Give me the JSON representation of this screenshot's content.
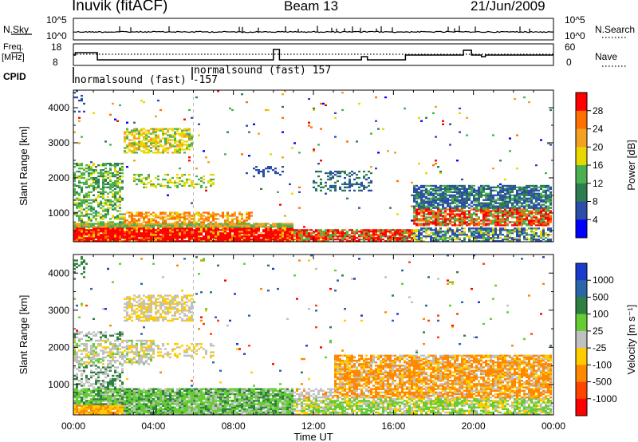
{
  "header": {
    "station": "Inuvik (fitACF)",
    "beam": "Beam 13",
    "date": "21/Jun/2009"
  },
  "strip": {
    "nsky_label": "N.Sky",
    "nsky_ticks": [
      "10^5",
      "10^0"
    ],
    "nsearch_label": "N.Search",
    "nsearch_ticks": [
      "10^5",
      "10^0"
    ],
    "freq_label": "Freq.",
    "freq_unit": "[MHz]",
    "freq_ticks": [
      "18",
      "8"
    ],
    "nave_label": "Nave",
    "nave_ticks": [
      "60",
      "0"
    ],
    "cpid_label": "CPID",
    "cpid_items": [
      "normalsound (fast) -157",
      "normalsound (fast) 157"
    ]
  },
  "chart_data": [
    {
      "type": "heatmap",
      "title": "",
      "xlabel": "",
      "ylabel": "Slant Range [km]",
      "xlim_hours": [
        0,
        24
      ],
      "ylim_km": [
        180,
        4500
      ],
      "yticks": [
        "1000",
        "2000",
        "3000",
        "4000"
      ],
      "colorbar": {
        "label": "Power [dB]",
        "ticks": [
          "4",
          "8",
          "12",
          "16",
          "20",
          "24",
          "28"
        ],
        "colors": [
          "#0000ff",
          "#2b4fa8",
          "#2e7d4f",
          "#4cb050",
          "#e8d800",
          "#f4a020",
          "#ff7000",
          "#ff0000"
        ]
      },
      "features": [
        {
          "hours": [
            0,
            11
          ],
          "range_km": [
            200,
            700
          ],
          "value": "22-30 dB"
        },
        {
          "hours": [
            11,
            17
          ],
          "range_km": [
            200,
            500
          ],
          "value": "16-28 dB"
        },
        {
          "hours": [
            17,
            24
          ],
          "range_km": [
            600,
            1800
          ],
          "value": "8-24 dB"
        },
        {
          "hours": [
            2.5,
            6
          ],
          "range_km": [
            2700,
            3400
          ],
          "value": "12-24 dB"
        }
      ]
    },
    {
      "type": "heatmap",
      "title": "",
      "xlabel": "Time UT",
      "ylabel": "Slant Range [km]",
      "xlim_hours": [
        0,
        24
      ],
      "ylim_km": [
        180,
        4500
      ],
      "yticks": [
        "1000",
        "2000",
        "3000",
        "4000"
      ],
      "xticks": [
        "00:00",
        "04:00",
        "08:00",
        "12:00",
        "16:00",
        "20:00",
        "00:00"
      ],
      "colorbar": {
        "label": "Velocity [m s⁻¹]",
        "ticks": [
          "1000",
          "500",
          "100",
          "25",
          "-25",
          "-100",
          "-500",
          "-1000"
        ],
        "colors": [
          "#1a3ccc",
          "#2a66a8",
          "#2e8040",
          "#66cc33",
          "#c0c0c0",
          "#ffcc00",
          "#ff8800",
          "#ff4400",
          "#ff0000"
        ]
      },
      "features": [
        {
          "hours": [
            0,
            11
          ],
          "range_km": [
            200,
            900
          ],
          "value": "-100 to 100 m/s"
        },
        {
          "hours": [
            13,
            24
          ],
          "range_km": [
            600,
            1800
          ],
          "value": "-100 to -500 m/s"
        },
        {
          "hours": [
            0,
            4
          ],
          "range_km": [
            1500,
            2200
          ],
          "value": "-25 to 25 m/s"
        }
      ]
    }
  ]
}
